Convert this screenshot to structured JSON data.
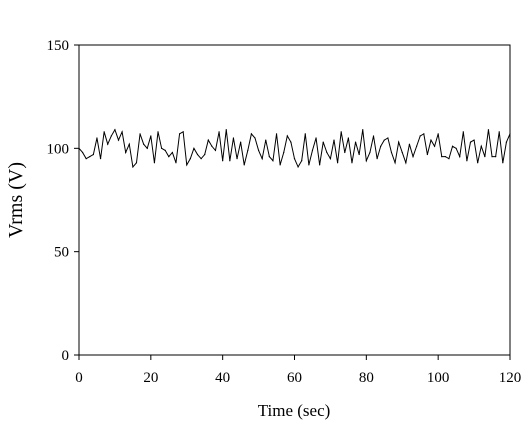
{
  "chart_data": {
    "type": "line",
    "title": "",
    "xlabel": "Time (sec)",
    "ylabel": "Vrms (V)",
    "xlim": [
      0,
      120
    ],
    "ylim": [
      0,
      150
    ],
    "xticks": [
      0,
      20,
      40,
      60,
      80,
      100,
      120
    ],
    "yticks": [
      0,
      50,
      100,
      150
    ],
    "grid": false,
    "legend": "none",
    "series": [
      {
        "color": "#000000",
        "x": [
          0,
          1,
          2,
          3,
          4,
          5,
          6,
          7,
          8,
          9,
          10,
          11,
          12,
          13,
          14,
          15,
          16,
          17,
          18,
          19,
          20,
          21,
          22,
          23,
          24,
          25,
          26,
          27,
          28,
          29,
          30,
          31,
          32,
          33,
          34,
          35,
          36,
          37,
          38,
          39,
          40,
          41,
          42,
          43,
          44,
          45,
          46,
          47,
          48,
          49,
          50,
          51,
          52,
          53,
          54,
          55,
          56,
          57,
          58,
          59,
          60,
          61,
          62,
          63,
          64,
          65,
          66,
          67,
          68,
          69,
          70,
          71,
          72,
          73,
          74,
          75,
          76,
          77,
          78,
          79,
          80,
          81,
          82,
          83,
          84,
          85,
          86,
          87,
          88,
          89,
          90,
          91,
          92,
          93,
          94,
          95,
          96,
          97,
          98,
          99,
          100,
          101,
          102,
          103,
          104,
          105,
          106,
          107,
          108,
          109,
          110,
          111,
          112,
          113,
          114,
          115,
          116,
          117,
          118,
          119,
          120
        ],
        "y": [
          100,
          98,
          95,
          96,
          97,
          105,
          95,
          108,
          102,
          106,
          109,
          104,
          108,
          98,
          102,
          91,
          93,
          107,
          102,
          100,
          106,
          93,
          108,
          100,
          99,
          96,
          98,
          93,
          107,
          108,
          92,
          95,
          100,
          97,
          95,
          97,
          104,
          101,
          99,
          108,
          94,
          109,
          94,
          105,
          95,
          103,
          92,
          99,
          107,
          105,
          99,
          95,
          104,
          96,
          94,
          107,
          92,
          98,
          106,
          103,
          95,
          91,
          94,
          107,
          92,
          99,
          105,
          92,
          103,
          98,
          95,
          104,
          93,
          108,
          98,
          105,
          93,
          103,
          97,
          109,
          94,
          98,
          106,
          95,
          101,
          104,
          105,
          98,
          93,
          103,
          98,
          93,
          102,
          96,
          101,
          106,
          107,
          97,
          104,
          101,
          107,
          96,
          96,
          95,
          101,
          100,
          96,
          108,
          94,
          103,
          104,
          93,
          101,
          96,
          109,
          96,
          96,
          108,
          93,
          103,
          107
        ]
      }
    ]
  }
}
